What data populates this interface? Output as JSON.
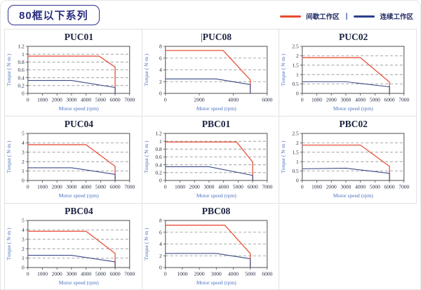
{
  "header": {
    "series_badge": "80框以下系列"
  },
  "legend": {
    "intermittent_label": "间歇工作区",
    "separator": "|",
    "continuous_label": "连续工作区",
    "intermittent_color": "#e84a2e",
    "continuous_color": "#2b3f8c"
  },
  "axis": {
    "x": "Motor speed (rpm)",
    "y": "Torque ( N·m )"
  },
  "colors": {
    "red_series": "#e8503a",
    "blue_series": "#3c4b86"
  },
  "chart_data": [
    {
      "type": "line",
      "title": "PUC01",
      "caret": "",
      "xlabel": "Motor speed (rpm)",
      "ylabel": "Torque ( N·m )",
      "xlim": [
        0,
        7000
      ],
      "xstep": 1000,
      "ylim": [
        0,
        1.2
      ],
      "ystep": 0.2,
      "series": [
        {
          "name": "间歇工作区",
          "color": "#e8503a",
          "points": [
            [
              0,
              0.95
            ],
            [
              4900,
              0.95
            ],
            [
              6000,
              0.67
            ],
            [
              6000,
              0
            ]
          ]
        },
        {
          "name": "连续工作区",
          "color": "#3c4b86",
          "points": [
            [
              0,
              0.33
            ],
            [
              3000,
              0.33
            ],
            [
              6000,
              0.15
            ],
            [
              6000,
              0
            ]
          ]
        }
      ]
    },
    {
      "type": "line",
      "title": "PUC08",
      "caret": "|",
      "xlabel": "Motor speed (rpm)",
      "ylabel": "Torque ( N·m )",
      "xlim": [
        0,
        6000
      ],
      "xstep": 2000,
      "ylim": [
        0,
        8
      ],
      "ystep": 2,
      "series": [
        {
          "name": "间歇工作区",
          "color": "#e8503a",
          "points": [
            [
              0,
              7.3
            ],
            [
              3400,
              7.3
            ],
            [
              5000,
              2.3
            ],
            [
              5000,
              0
            ]
          ]
        },
        {
          "name": "连续工作区",
          "color": "#3c4b86",
          "points": [
            [
              0,
              2.45
            ],
            [
              3000,
              2.45
            ],
            [
              5000,
              1.5
            ],
            [
              5000,
              0
            ]
          ]
        }
      ]
    },
    {
      "type": "line",
      "title": "PUC02",
      "caret": "",
      "xlabel": "Motor speed (rpm)",
      "ylabel": "Torque ( N·m )",
      "xlim": [
        0,
        7000
      ],
      "xstep": 1000,
      "ylim": [
        0,
        2.5
      ],
      "ystep": 0.5,
      "series": [
        {
          "name": "间歇工作区",
          "color": "#e8503a",
          "points": [
            [
              0,
              1.9
            ],
            [
              4000,
              1.9
            ],
            [
              6000,
              0.6
            ],
            [
              6000,
              0
            ]
          ]
        },
        {
          "name": "连续工作区",
          "color": "#3c4b86",
          "points": [
            [
              0,
              0.62
            ],
            [
              3000,
              0.62
            ],
            [
              6000,
              0.35
            ],
            [
              6000,
              0
            ]
          ]
        }
      ]
    },
    {
      "type": "line",
      "title": "PUC04",
      "caret": "",
      "xlabel": "Motor speed (rpm)",
      "ylabel": "Torque ( N·m )",
      "xlim": [
        0,
        7000
      ],
      "xstep": 1000,
      "ylim": [
        0,
        5
      ],
      "ystep": 1,
      "series": [
        {
          "name": "间歇工作区",
          "color": "#e8503a",
          "points": [
            [
              0,
              3.8
            ],
            [
              4000,
              3.8
            ],
            [
              6000,
              1.5
            ],
            [
              6000,
              0
            ]
          ]
        },
        {
          "name": "连续工作区",
          "color": "#3c4b86",
          "points": [
            [
              0,
              1.35
            ],
            [
              3000,
              1.35
            ],
            [
              6000,
              0.65
            ],
            [
              6000,
              0
            ]
          ]
        }
      ]
    },
    {
      "type": "line",
      "title": "PBC01",
      "caret": "",
      "xlabel": "Motor speed (rpm)",
      "ylabel": "Torque ( N·m )",
      "xlim": [
        0,
        7000
      ],
      "xstep": 1000,
      "ylim": [
        0,
        1.2
      ],
      "ystep": 0.2,
      "series": [
        {
          "name": "间歇工作区",
          "color": "#e8503a",
          "points": [
            [
              0,
              0.98
            ],
            [
              4900,
              0.98
            ],
            [
              6000,
              0.47
            ],
            [
              6000,
              0
            ]
          ]
        },
        {
          "name": "连续工作区",
          "color": "#3c4b86",
          "points": [
            [
              0,
              0.35
            ],
            [
              3000,
              0.35
            ],
            [
              6000,
              0.13
            ],
            [
              6000,
              0
            ]
          ]
        }
      ]
    },
    {
      "type": "line",
      "title": "PBC02",
      "caret": "",
      "xlabel": "Motor speed (rpm)",
      "ylabel": "Torque ( N·m )",
      "xlim": [
        0,
        7000
      ],
      "xstep": 1000,
      "ylim": [
        0,
        2.5
      ],
      "ystep": 0.5,
      "series": [
        {
          "name": "间歇工作区",
          "color": "#e8503a",
          "points": [
            [
              0,
              1.88
            ],
            [
              4000,
              1.88
            ],
            [
              6000,
              0.75
            ],
            [
              6000,
              0
            ]
          ]
        },
        {
          "name": "连续工作区",
          "color": "#3c4b86",
          "points": [
            [
              0,
              0.62
            ],
            [
              3000,
              0.65
            ],
            [
              6000,
              0.38
            ],
            [
              6000,
              0
            ]
          ]
        }
      ]
    },
    {
      "type": "line",
      "title": "PBC04",
      "caret": "",
      "xlabel": "Motor speed (rpm)",
      "ylabel": "Torque ( N·m )",
      "xlim": [
        0,
        7000
      ],
      "xstep": 1000,
      "ylim": [
        0,
        5
      ],
      "ystep": 1,
      "series": [
        {
          "name": "间歇工作区",
          "color": "#e8503a",
          "points": [
            [
              0,
              3.85
            ],
            [
              4000,
              3.85
            ],
            [
              6000,
              1.5
            ],
            [
              6000,
              0
            ]
          ]
        },
        {
          "name": "连续工作区",
          "color": "#3c4b86",
          "points": [
            [
              0,
              1.3
            ],
            [
              3000,
              1.3
            ],
            [
              6000,
              0.6
            ],
            [
              6000,
              0
            ]
          ]
        }
      ]
    },
    {
      "type": "line",
      "title": "PBC08",
      "caret": "",
      "xlabel": "Motor speed (rpm)",
      "ylabel": "Torque ( N·m )",
      "xlim": [
        0,
        6000
      ],
      "xstep": 1000,
      "ylim": [
        0,
        8
      ],
      "ystep": 2,
      "series": [
        {
          "name": "间歇工作区",
          "color": "#e8503a",
          "points": [
            [
              0,
              7.2
            ],
            [
              3500,
              7.2
            ],
            [
              5000,
              2.4
            ],
            [
              5000,
              0
            ]
          ]
        },
        {
          "name": "连续工作区",
          "color": "#3c4b86",
          "points": [
            [
              0,
              2.4
            ],
            [
              3000,
              2.4
            ],
            [
              5000,
              1.5
            ],
            [
              5000,
              0
            ]
          ]
        }
      ]
    }
  ]
}
